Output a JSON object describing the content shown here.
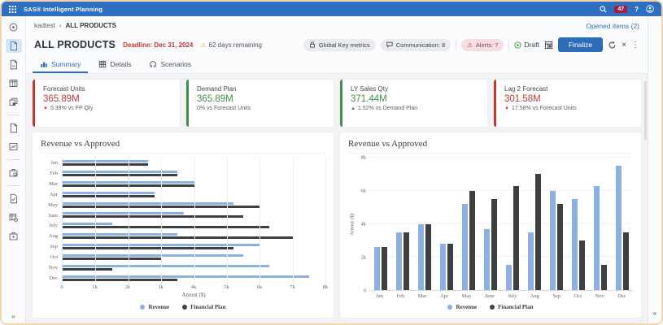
{
  "topbar": {
    "title": "SAS® Intelligent Planning",
    "notification_count": "47",
    "help_label": "?"
  },
  "breadcrumb": {
    "parent": "kadtest",
    "separator": "›",
    "current": "ALL PRODUCTS"
  },
  "opened_items_label": "Opened items (2)",
  "header": {
    "title": "ALL PRODUCTS",
    "deadline": "Deadline: Dec 31, 2024",
    "days_remaining": "62 days remaining",
    "global_key_metrics_label": "Global Key metrics",
    "communication_label": "Communication: 8",
    "alerts_label": "Alerts: 7",
    "status_label": "Draft",
    "finalize_label": "Finalize"
  },
  "tabs": [
    {
      "label": "Summary",
      "active": true
    },
    {
      "label": "Details",
      "active": false
    },
    {
      "label": "Scenarios",
      "active": false
    }
  ],
  "kpis": [
    {
      "label": "Forecast Units",
      "value": "365.89M",
      "delta": "5.39% vs FP Qty",
      "direction": "down",
      "tone": "negative"
    },
    {
      "label": "Demand Plan",
      "value": "365.89M",
      "delta": "0% vs Forecast Units",
      "direction": "none",
      "tone": "positive"
    },
    {
      "label": "LY Sales Qty",
      "value": "371.44M",
      "delta": "1.52% vs Demand Plan",
      "direction": "up",
      "tone": "positive"
    },
    {
      "label": "Lag 2 Forecast",
      "value": "301.58M",
      "delta": "17.58% vs Forecast Units",
      "direction": "down",
      "tone": "negative"
    }
  ],
  "glyphs": {
    "close": "×",
    "kebab": "⋮",
    "warning": "⚠",
    "collapse_sidebar": "»",
    "expand_panel": "«",
    "arrow_down": "▼",
    "arrow_up": "▲"
  },
  "colors": {
    "topbar": "#2e6fc0",
    "accent": "#2d6cba",
    "link": "#2f6eb5",
    "negative": "#c23934",
    "positive": "#3f8f4a",
    "revenue": "#8cb0e2",
    "financial_plan": "#3c4043"
  },
  "chart_data": [
    {
      "type": "bar",
      "orientation": "horizontal",
      "title": "Revenue vs Approved",
      "categories": [
        "Jan",
        "Feb",
        "Mar",
        "Apr",
        "May",
        "June",
        "July",
        "Aug",
        "Sep",
        "Oct",
        "Nov",
        "Dec"
      ],
      "series": [
        {
          "name": "Revenue",
          "color": "#8cb0e2",
          "values": [
            2600,
            3500,
            4000,
            2800,
            5200,
            3700,
            1500,
            3500,
            6000,
            5500,
            6300,
            7500
          ]
        },
        {
          "name": "Financial Plan",
          "color": "#3c4043",
          "values": [
            2600,
            3500,
            4000,
            2800,
            6000,
            5500,
            6300,
            7000,
            5200,
            3000,
            1500,
            3500
          ]
        }
      ],
      "xlabel": "Amout ($)",
      "xlim": [
        0,
        8000
      ],
      "x_ticks": [
        "0",
        "1k",
        "2k",
        "3k",
        "4k",
        "5k",
        "6k",
        "7k",
        "8k"
      ],
      "grid": true,
      "legend_position": "bottom"
    },
    {
      "type": "bar",
      "orientation": "vertical",
      "title": "Revenue vs Approved",
      "categories": [
        "Jan",
        "Feb",
        "Mar",
        "Apr",
        "May",
        "June",
        "July",
        "Aug",
        "Sep",
        "Oct",
        "Nov",
        "Dec"
      ],
      "series": [
        {
          "name": "Revenue",
          "color": "#8cb0e2",
          "values": [
            2600,
            3500,
            4000,
            2800,
            5200,
            3700,
            1500,
            3500,
            6000,
            5500,
            6300,
            7500
          ]
        },
        {
          "name": "Financial Plan",
          "color": "#3c4043",
          "values": [
            2600,
            3500,
            4000,
            2800,
            6000,
            5500,
            6300,
            7000,
            5200,
            3000,
            1500,
            3500
          ]
        }
      ],
      "ylabel": "Amout ($)",
      "ylim": [
        0,
        8000
      ],
      "y_ticks": [
        "0",
        "2k",
        "4k",
        "6k",
        "8k"
      ],
      "grid": true,
      "legend_position": "bottom"
    }
  ]
}
